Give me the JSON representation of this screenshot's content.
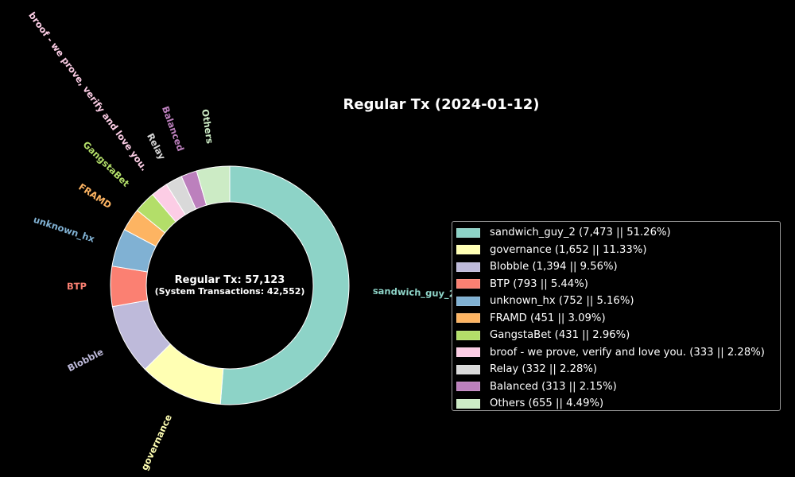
{
  "chart_data": {
    "type": "pie",
    "variant": "donut",
    "title": "Regular Tx (2024-01-12)",
    "center_text": {
      "main": "Regular Tx: 57,123",
      "sub": "(System Transactions: 42,552)"
    },
    "slices": [
      {
        "label": "sandwich_guy_2",
        "value": 7473,
        "percent": 51.26,
        "color": "#8dd3c7",
        "legend": "sandwich_guy_2 (7,473 || 51.26%)"
      },
      {
        "label": "governance",
        "value": 1652,
        "percent": 11.33,
        "color": "#ffffb3",
        "legend": "governance (1,652 || 11.33%)"
      },
      {
        "label": "Blobble",
        "value": 1394,
        "percent": 9.56,
        "color": "#bebada",
        "legend": "Blobble (1,394 || 9.56%)"
      },
      {
        "label": "BTP",
        "value": 793,
        "percent": 5.44,
        "color": "#fb8072",
        "legend": "BTP (793 || 5.44%)"
      },
      {
        "label": "unknown_hx",
        "value": 752,
        "percent": 5.16,
        "color": "#80b1d3",
        "legend": "unknown_hx (752 || 5.16%)"
      },
      {
        "label": "FRAMD",
        "value": 451,
        "percent": 3.09,
        "color": "#fdb462",
        "legend": "FRAMD (451 || 3.09%)"
      },
      {
        "label": "GangstaBet",
        "value": 431,
        "percent": 2.96,
        "color": "#b3de69",
        "legend": "GangstaBet (431 || 2.96%)"
      },
      {
        "label": "broof - we prove, verify and love you.",
        "value": 333,
        "percent": 2.28,
        "color": "#fccde5",
        "legend": "broof - we prove, verify and love you. (333 || 2.28%)"
      },
      {
        "label": "Relay",
        "value": 332,
        "percent": 2.28,
        "color": "#d9d9d9",
        "legend": "Relay (332 || 2.28%)"
      },
      {
        "label": "Balanced",
        "value": 313,
        "percent": 2.15,
        "color": "#bc80bd",
        "legend": "Balanced (313 || 2.15%)"
      },
      {
        "label": "Others",
        "value": 655,
        "percent": 4.49,
        "color": "#ccebc5",
        "legend": "Others (655 || 4.49%)"
      }
    ],
    "start": "top",
    "direction": "clockwise",
    "legend_position": "right"
  }
}
